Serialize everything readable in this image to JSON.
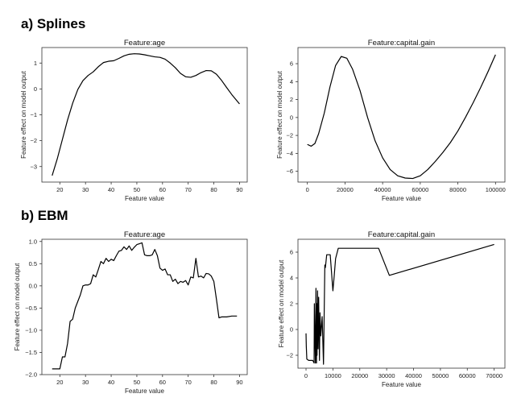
{
  "sections": {
    "a": "a) Splines",
    "b": "b) EBM"
  },
  "chart_data": [
    {
      "type": "line",
      "title": "Feature:age",
      "xlabel": "Feature value",
      "ylabel": "Feature effect on model output",
      "xlim": [
        13,
        93
      ],
      "ylim": [
        -3.6,
        1.6
      ],
      "xticks": [
        20,
        30,
        40,
        50,
        60,
        70,
        80,
        90
      ],
      "yticks": [
        -3,
        -2,
        -1,
        0,
        1
      ],
      "series": [
        {
          "x": [
            17,
            19,
            21,
            23,
            25,
            27,
            29,
            31,
            33,
            35,
            37,
            39,
            41,
            43,
            45,
            47,
            49,
            51,
            53,
            55,
            57,
            59,
            61,
            63,
            65,
            67,
            69,
            71,
            73,
            75,
            77,
            79,
            81,
            83,
            85,
            87,
            90
          ],
          "values": [
            -3.35,
            -2.7,
            -1.95,
            -1.2,
            -0.55,
            -0.02,
            0.32,
            0.52,
            0.66,
            0.86,
            1.02,
            1.07,
            1.09,
            1.18,
            1.28,
            1.34,
            1.36,
            1.35,
            1.32,
            1.28,
            1.24,
            1.22,
            1.15,
            1.0,
            0.82,
            0.6,
            0.47,
            0.45,
            0.52,
            0.63,
            0.71,
            0.7,
            0.57,
            0.33,
            0.05,
            -0.22,
            -0.58
          ]
        }
      ]
    },
    {
      "type": "line",
      "title": "Feature:capital.gain",
      "xlabel": "Feature value",
      "ylabel": "Feature effect on model output",
      "xlim": [
        -5000,
        105000
      ],
      "ylim": [
        -7.2,
        7.8
      ],
      "xticks": [
        0,
        20000,
        40000,
        60000,
        80000,
        100000
      ],
      "yticks": [
        -6,
        -4,
        -2,
        0,
        2,
        4,
        6
      ],
      "series": [
        {
          "x": [
            0,
            2000,
            4000,
            6000,
            9000,
            12000,
            15000,
            18000,
            21000,
            24000,
            28000,
            32000,
            36000,
            40000,
            44000,
            48000,
            52000,
            56000,
            60000,
            64000,
            68000,
            72000,
            76000,
            80000,
            84000,
            88000,
            92000,
            96000,
            100000
          ],
          "values": [
            -3.0,
            -3.2,
            -2.9,
            -1.8,
            0.5,
            3.4,
            5.8,
            6.8,
            6.6,
            5.4,
            3.0,
            0.0,
            -2.6,
            -4.5,
            -5.8,
            -6.5,
            -6.75,
            -6.8,
            -6.5,
            -5.8,
            -4.9,
            -3.9,
            -2.8,
            -1.5,
            0.0,
            1.6,
            3.3,
            5.1,
            7.0
          ]
        }
      ]
    },
    {
      "type": "line",
      "title": "Feature:age",
      "xlabel": "Feature value",
      "ylabel": "Feature effect on model output",
      "xlim": [
        13,
        93
      ],
      "ylim": [
        -2.0,
        1.05
      ],
      "xticks": [
        20,
        30,
        40,
        50,
        60,
        70,
        80,
        90
      ],
      "yticks": [
        -2.0,
        -1.5,
        -1.0,
        -0.5,
        0.0,
        0.5,
        1.0
      ],
      "series": [
        {
          "x": [
            17,
            20,
            21,
            22,
            23,
            24,
            25,
            26,
            27,
            28,
            29,
            30,
            31,
            32,
            33,
            34,
            35,
            36,
            37,
            38,
            39,
            40,
            41,
            42,
            43,
            44,
            45,
            46,
            47,
            48,
            49,
            50,
            51,
            52,
            53,
            54,
            55,
            56,
            57,
            58,
            59,
            60,
            61,
            62,
            63,
            64,
            65,
            66,
            67,
            68,
            69,
            70,
            71,
            72,
            73,
            74,
            75,
            76,
            77,
            78,
            79,
            80,
            81,
            82,
            83,
            85,
            87,
            89
          ],
          "values": [
            -1.87,
            -1.87,
            -1.6,
            -1.6,
            -1.3,
            -0.8,
            -0.75,
            -0.5,
            -0.35,
            -0.2,
            0.0,
            0.02,
            0.02,
            0.05,
            0.25,
            0.2,
            0.37,
            0.55,
            0.5,
            0.62,
            0.55,
            0.6,
            0.57,
            0.68,
            0.78,
            0.8,
            0.88,
            0.82,
            0.9,
            0.8,
            0.87,
            0.93,
            0.95,
            0.97,
            0.7,
            0.68,
            0.68,
            0.7,
            0.82,
            0.68,
            0.4,
            0.35,
            0.38,
            0.25,
            0.25,
            0.1,
            0.15,
            0.05,
            0.1,
            0.08,
            0.12,
            0.02,
            0.2,
            0.18,
            0.62,
            0.2,
            0.22,
            0.18,
            0.28,
            0.27,
            0.22,
            0.1,
            -0.3,
            -0.72,
            -0.7,
            -0.7,
            -0.68,
            -0.68
          ]
        }
      ]
    },
    {
      "type": "line",
      "title": "Feature:capital.gain",
      "xlabel": "Feature value",
      "ylabel": "Feature effect on model output",
      "xlim": [
        -3000,
        74000
      ],
      "ylim": [
        -3.0,
        7.0
      ],
      "xticks": [
        0,
        10000,
        20000,
        30000,
        40000,
        50000,
        60000,
        70000
      ],
      "yticks": [
        -2,
        0,
        2,
        4,
        6
      ],
      "series": [
        {
          "x": [
            0,
            100,
            300,
            1000,
            2500,
            3000,
            3100,
            3300,
            3500,
            3700,
            3900,
            4000,
            4100,
            4300,
            4500,
            4700,
            5000,
            5200,
            5500,
            6000,
            6500,
            7000,
            7200,
            7500,
            7700,
            8000,
            9000,
            10000,
            10500,
            11000,
            12000,
            27000,
            31000,
            70000
          ],
          "values": [
            -0.3,
            -1.3,
            -2.3,
            -2.4,
            -2.4,
            -2.6,
            2.0,
            -0.5,
            -2.6,
            3.2,
            -2.6,
            2.0,
            -2.0,
            3.0,
            -1.5,
            2.5,
            -2.4,
            1.3,
            -0.5,
            1.0,
            -2.7,
            5.0,
            4.8,
            5.4,
            5.8,
            5.8,
            5.8,
            3.0,
            4.2,
            5.5,
            6.3,
            6.3,
            4.2,
            6.6
          ]
        }
      ]
    }
  ]
}
